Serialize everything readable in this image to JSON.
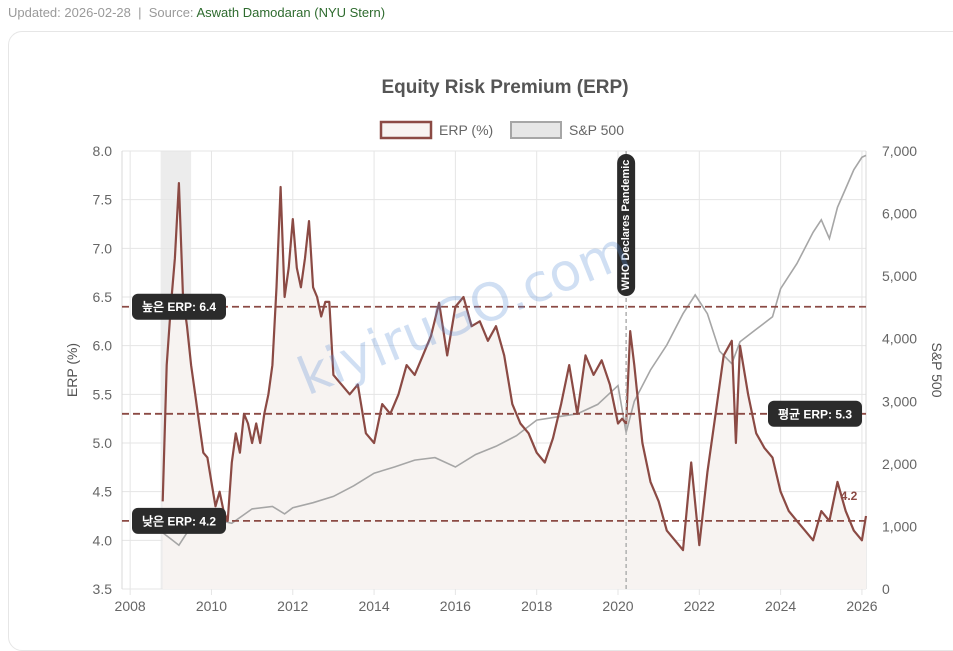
{
  "header": {
    "updated": "Updated: 2026-02-28",
    "separator": "|",
    "source_label": "Source:",
    "source_name": "Aswath Damodaran (NYU Stern)"
  },
  "watermark": "kiyiruGO.com",
  "colors": {
    "erp_line": "#8b4a44",
    "erp_fill": "#f7f3f1",
    "sp_line": "#a6a6a6",
    "recession_band": "#e6e6e6",
    "label_bg": "#2b2b2b"
  },
  "chart_data": {
    "type": "line",
    "title": "Equity Risk Premium (ERP)",
    "ylabel": "ERP (%)",
    "y2label": "S&P 500",
    "xlim": [
      2007.8,
      2026.1
    ],
    "ylim": [
      3.5,
      8.0
    ],
    "y2lim": [
      0,
      7000
    ],
    "x_ticks": [
      "2008",
      "2010",
      "2012",
      "2014",
      "2016",
      "2018",
      "2020",
      "2022",
      "2024",
      "2026"
    ],
    "y_ticks": [
      "3.5",
      "4.0",
      "4.5",
      "5.0",
      "5.5",
      "6.0",
      "6.5",
      "7.0",
      "7.5",
      "8.0"
    ],
    "y2_ticks": [
      "0",
      "1,000",
      "2,000",
      "3,000",
      "4,000",
      "5,000",
      "6,000",
      "7,000"
    ],
    "grid": true,
    "legend": {
      "placement": "top-center",
      "items": [
        "ERP (%)",
        "S&P 500"
      ]
    },
    "recession_band": [
      2008.75,
      2009.5
    ],
    "reference_lines": [
      {
        "label": "높은 ERP: 6.4",
        "value": 6.4,
        "label_side": "left"
      },
      {
        "label": "평균 ERP: 5.3",
        "value": 5.3,
        "label_side": "right"
      },
      {
        "label": "낮은 ERP: 4.2",
        "value": 4.2,
        "label_side": "left"
      }
    ],
    "annotations": [
      {
        "label": "WHO Declares Pandemic",
        "x": 2020.2,
        "type": "vertical-line"
      }
    ],
    "last_value_label": "4.2",
    "series": [
      {
        "name": "ERP (%)",
        "axis": "left",
        "x": [
          2008.8,
          2008.9,
          2009.0,
          2009.1,
          2009.2,
          2009.3,
          2009.4,
          2009.5,
          2009.6,
          2009.7,
          2009.8,
          2009.9,
          2010.0,
          2010.1,
          2010.2,
          2010.3,
          2010.4,
          2010.5,
          2010.6,
          2010.7,
          2010.8,
          2010.9,
          2011.0,
          2011.1,
          2011.2,
          2011.3,
          2011.4,
          2011.5,
          2011.6,
          2011.7,
          2011.8,
          2011.9,
          2012.0,
          2012.1,
          2012.2,
          2012.3,
          2012.4,
          2012.5,
          2012.6,
          2012.7,
          2012.8,
          2012.9,
          2013.0,
          2013.2,
          2013.4,
          2013.6,
          2013.8,
          2014.0,
          2014.2,
          2014.4,
          2014.6,
          2014.8,
          2015.0,
          2015.2,
          2015.4,
          2015.6,
          2015.8,
          2016.0,
          2016.2,
          2016.4,
          2016.6,
          2016.8,
          2017.0,
          2017.2,
          2017.4,
          2017.6,
          2017.8,
          2018.0,
          2018.2,
          2018.4,
          2018.6,
          2018.8,
          2019.0,
          2019.2,
          2019.4,
          2019.6,
          2019.8,
          2020.0,
          2020.1,
          2020.2,
          2020.3,
          2020.4,
          2020.5,
          2020.6,
          2020.8,
          2021.0,
          2021.2,
          2021.4,
          2021.6,
          2021.8,
          2022.0,
          2022.2,
          2022.4,
          2022.6,
          2022.8,
          2022.9,
          2023.0,
          2023.2,
          2023.4,
          2023.6,
          2023.8,
          2024.0,
          2024.2,
          2024.4,
          2024.6,
          2024.8,
          2025.0,
          2025.2,
          2025.4,
          2025.6,
          2025.8,
          2026.0,
          2026.1
        ],
        "values": [
          4.4,
          5.8,
          6.4,
          6.9,
          7.67,
          6.5,
          6.2,
          5.8,
          5.5,
          5.2,
          4.9,
          4.85,
          4.6,
          4.35,
          4.5,
          4.3,
          4.2,
          4.8,
          5.1,
          4.9,
          5.3,
          5.2,
          5.0,
          5.2,
          5.0,
          5.3,
          5.5,
          5.8,
          6.6,
          7.63,
          6.5,
          6.8,
          7.3,
          6.8,
          6.6,
          6.9,
          7.28,
          6.6,
          6.5,
          6.3,
          6.45,
          6.45,
          5.7,
          5.6,
          5.5,
          5.6,
          5.1,
          5.0,
          5.4,
          5.3,
          5.5,
          5.8,
          5.7,
          5.9,
          6.1,
          6.44,
          5.9,
          6.4,
          6.5,
          6.2,
          6.25,
          6.05,
          6.2,
          5.9,
          5.4,
          5.2,
          5.1,
          4.9,
          4.8,
          5.05,
          5.4,
          5.8,
          5.3,
          5.9,
          5.7,
          5.85,
          5.6,
          5.2,
          5.25,
          5.2,
          6.15,
          5.8,
          5.4,
          5.0,
          4.6,
          4.4,
          4.1,
          4.0,
          3.9,
          4.8,
          3.95,
          4.7,
          5.3,
          5.9,
          6.05,
          5.0,
          6.0,
          5.5,
          5.1,
          4.95,
          4.85,
          4.5,
          4.3,
          4.2,
          4.1,
          4.0,
          4.3,
          4.2,
          4.6,
          4.3,
          4.1,
          4.0,
          4.25
        ]
      },
      {
        "name": "S&P 500",
        "axis": "right",
        "x": [
          2008.8,
          2009.0,
          2009.2,
          2009.5,
          2010.0,
          2010.5,
          2011.0,
          2011.5,
          2011.8,
          2012.0,
          2012.5,
          2013.0,
          2013.5,
          2014.0,
          2014.5,
          2015.0,
          2015.5,
          2016.0,
          2016.5,
          2017.0,
          2017.5,
          2018.0,
          2018.5,
          2019.0,
          2019.5,
          2020.0,
          2020.2,
          2020.4,
          2020.8,
          2021.2,
          2021.6,
          2021.9,
          2022.2,
          2022.5,
          2022.8,
          2023.0,
          2023.4,
          2023.8,
          2024.0,
          2024.4,
          2024.8,
          2025.0,
          2025.2,
          2025.4,
          2025.6,
          2025.8,
          2026.0,
          2026.1
        ],
        "values": [
          900,
          800,
          700,
          1000,
          1120,
          1050,
          1280,
          1320,
          1200,
          1300,
          1380,
          1480,
          1650,
          1850,
          1950,
          2060,
          2100,
          1950,
          2150,
          2280,
          2450,
          2700,
          2750,
          2800,
          2950,
          3250,
          2500,
          3000,
          3500,
          3900,
          4400,
          4700,
          4400,
          3800,
          3600,
          3950,
          4150,
          4350,
          4800,
          5200,
          5700,
          5900,
          5600,
          6100,
          6400,
          6700,
          6900,
          6930
        ]
      }
    ]
  }
}
